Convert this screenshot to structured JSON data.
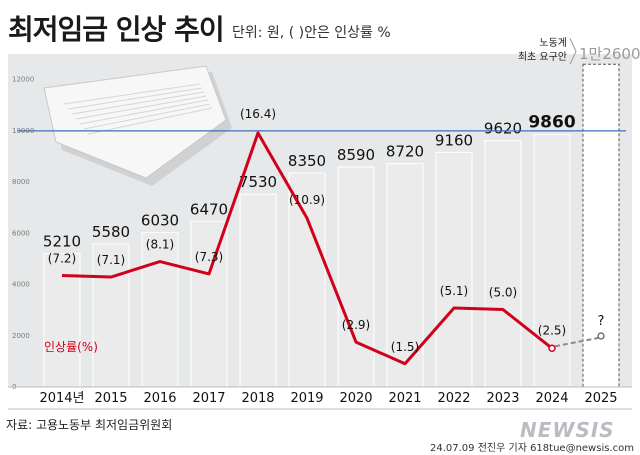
{
  "header": {
    "title": "최저임금 인상 추이",
    "unit_note": "단위: 원, ( )안은 인상률 %"
  },
  "footer": {
    "source": "자료: 고용노동부 최저임금위원회",
    "credit": "24.07.09 전진우 기자 618tue@newsis.com",
    "watermark": "NEWSIS"
  },
  "colors": {
    "bar": "#ebebeb",
    "plot_bg": "#e7e8e9",
    "line": "#d0021b",
    "reference_line": "#3d6fb5",
    "forecast_line": "#8a8a8a"
  },
  "chart_data": {
    "type": "bar",
    "categories": [
      "2014년",
      "2015",
      "2016",
      "2017",
      "2018",
      "2019",
      "2020",
      "2021",
      "2022",
      "2023",
      "2024",
      "2025"
    ],
    "series": [
      {
        "values": [
          5210,
          5580,
          6030,
          6470,
          7530,
          8350,
          8590,
          8720,
          9160,
          9620,
          9860,
          null
        ]
      },
      {
        "name": "인상률(%)",
        "type": "line",
        "values": [
          7.2,
          7.1,
          8.1,
          7.3,
          16.4,
          10.9,
          2.9,
          1.5,
          5.1,
          5.0,
          2.5,
          null
        ]
      }
    ],
    "bar_labels": [
      "5210",
      "5580",
      "6030",
      "6470",
      "7530",
      "8350",
      "8590",
      "8720",
      "9160",
      "9620",
      "9860",
      ""
    ],
    "rate_labels": [
      "(7.2)",
      "(7.1)",
      "(8.1)",
      "(7.3)",
      "(16.4)",
      "(10.9)",
      "(2.9)",
      "(1.5)",
      "(5.1)",
      "(5.0)",
      "(2.5)",
      "?"
    ],
    "y_ticks": [
      0,
      2000,
      4000,
      6000,
      8000,
      10000,
      12000
    ],
    "ylim": [
      0,
      13000
    ],
    "rate_ylim": [
      0,
      21.5
    ],
    "highlight_value": "9860",
    "reference": {
      "value": 10000
    },
    "annotation": {
      "value": 12600,
      "label": "1만2600",
      "prefix_lines": [
        "노동계",
        "최초 요구안"
      ]
    }
  }
}
